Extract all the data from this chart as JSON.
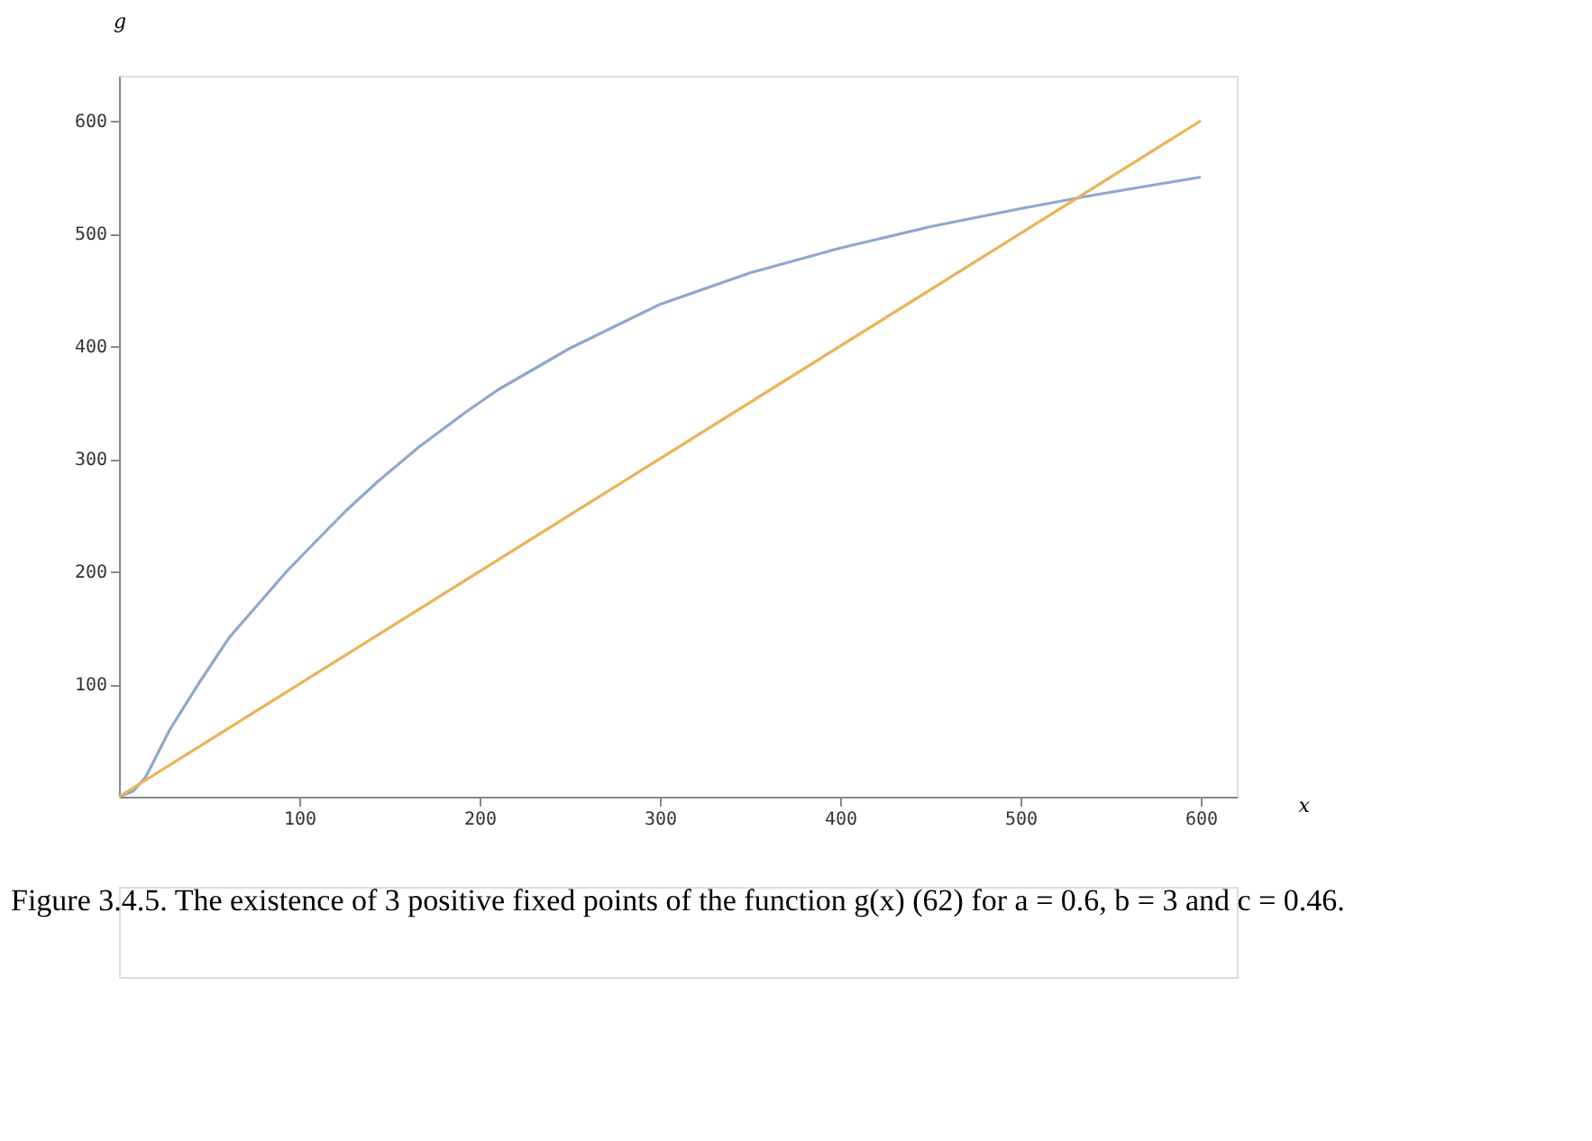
{
  "chart_data": {
    "type": "line",
    "xlabel": "x",
    "ylabel": "g",
    "annotations": [
      "Figure 3.4.5. The existence of 3 positive fixed points of the function g(x) (62) for a = 0.6, b = 3 and c = 0.46."
    ],
    "series": [
      {
        "color": "#8fa8cc",
        "x": [
          0,
          8,
          15,
          28,
          44,
          61,
          74,
          93,
          110,
          126,
          143,
          166,
          192,
          210,
          250,
          300,
          350,
          400,
          450,
          500,
          537,
          570,
          600
        ],
        "values": [
          0,
          5,
          18,
          59,
          100,
          141,
          165,
          200,
          228,
          254,
          279,
          310,
          341,
          361,
          398,
          437,
          465,
          487,
          506,
          522,
          533,
          542,
          550
        ]
      },
      {
        "color": "#eab45c",
        "x": [
          0,
          600
        ],
        "values": [
          0,
          600
        ]
      }
    ],
    "xlim": [
      0,
      620
    ],
    "ylim": [
      0,
      640
    ],
    "xticks": [
      100,
      200,
      300,
      400,
      500,
      600
    ],
    "yticks": [
      100,
      200,
      300,
      400,
      500,
      600
    ],
    "grid": false,
    "legend": false,
    "line_style": "solid",
    "marker": "none"
  }
}
